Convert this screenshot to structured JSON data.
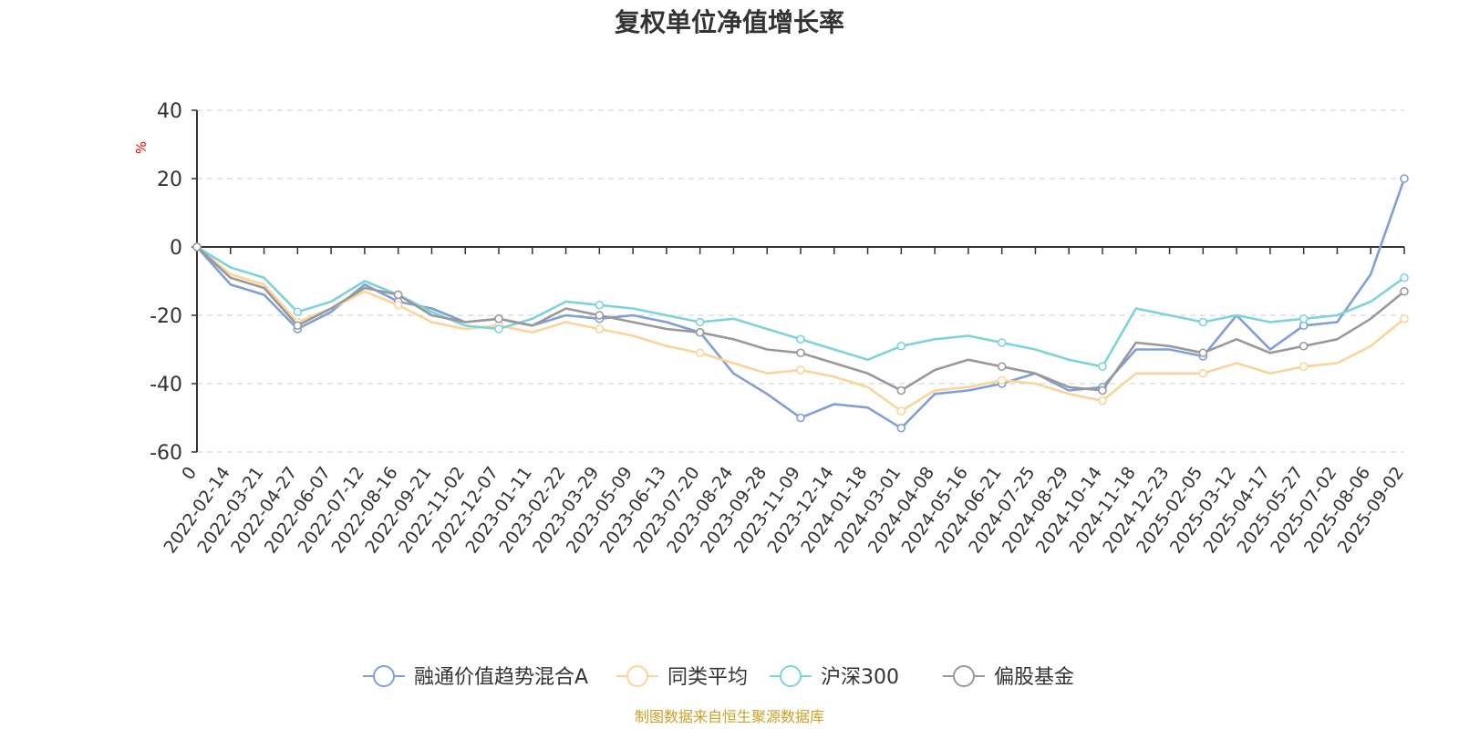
{
  "chart_data": {
    "type": "line",
    "title": "复权单位净值增长率",
    "ylabel": "%",
    "ylim": [
      -60,
      40
    ],
    "yticks": [
      40,
      20,
      0,
      -20,
      -40,
      -60
    ],
    "x_tick_labels": [
      "0",
      "2022-02-14",
      "2022-03-21",
      "2022-04-27",
      "2022-06-07",
      "2022-07-12",
      "2022-08-16",
      "2022-09-21",
      "2022-11-02",
      "2022-12-07",
      "2023-01-11",
      "2023-02-22",
      "2023-03-29",
      "2023-05-09",
      "2023-06-13",
      "2023-07-20",
      "2023-08-24",
      "2023-09-28",
      "2023-11-09",
      "2023-12-14",
      "2024-01-18",
      "2024-03-01",
      "2024-04-08",
      "2024-05-16",
      "2024-06-21",
      "2024-07-25",
      "2024-08-29",
      "2024-10-14",
      "2024-11-18",
      "2024-12-23",
      "2025-02-05",
      "2025-03-12",
      "2025-04-17",
      "2025-05-27",
      "2025-07-02",
      "2025-08-06",
      "2025-09-02"
    ],
    "grid": true,
    "legend_position": "bottom",
    "source": "制图数据来自恒生聚源数据库",
    "series": [
      {
        "name": "融通价值趋势混合A",
        "color": "#7f9fd8",
        "values": [
          0,
          -11,
          -14,
          -24,
          -19,
          -11,
          -16,
          -18,
          -22,
          -21,
          -23,
          -20,
          -21,
          -20,
          -22,
          -25,
          -37,
          -43,
          -50,
          -46,
          -47,
          -53,
          -43,
          -42,
          -40,
          -37,
          -42,
          -41,
          -30,
          -30,
          -32,
          -20,
          -30,
          -23,
          -22,
          -8,
          20
        ]
      },
      {
        "name": "同类平均",
        "color": "#fbd49a",
        "values": [
          0,
          -8,
          -11,
          -22,
          -18,
          -13,
          -17,
          -22,
          -24,
          -23,
          -25,
          -22,
          -24,
          -26,
          -29,
          -31,
          -34,
          -37,
          -36,
          -38,
          -41,
          -48,
          -42,
          -41,
          -39,
          -40,
          -43,
          -45,
          -37,
          -37,
          -37,
          -34,
          -37,
          -35,
          -34,
          -29,
          -21
        ]
      },
      {
        "name": "沪深300",
        "color": "#7dd3d8",
        "values": [
          0,
          -6,
          -9,
          -19,
          -16,
          -10,
          -14,
          -19,
          -23,
          -24,
          -21,
          -16,
          -17,
          -18,
          -20,
          -22,
          -21,
          -24,
          -27,
          -30,
          -33,
          -29,
          -27,
          -26,
          -28,
          -30,
          -33,
          -35,
          -18,
          -20,
          -22,
          -20,
          -22,
          -21,
          -20,
          -16,
          -9
        ]
      },
      {
        "name": "偏股基金",
        "color": "#999999",
        "values": [
          0,
          -9,
          -12,
          -23,
          -18,
          -12,
          -14,
          -20,
          -22,
          -21,
          -23,
          -18,
          -20,
          -22,
          -24,
          -25,
          -27,
          -30,
          -31,
          -34,
          -37,
          -42,
          -36,
          -33,
          -35,
          -37,
          -41,
          -42,
          -28,
          -29,
          -31,
          -27,
          -31,
          -29,
          -27,
          -21,
          -13
        ]
      }
    ]
  }
}
